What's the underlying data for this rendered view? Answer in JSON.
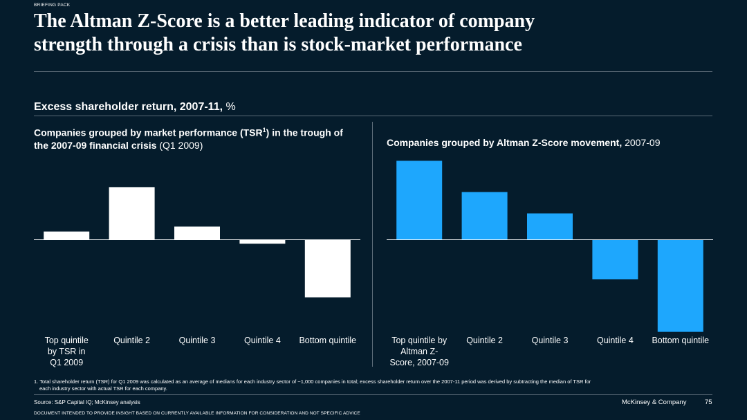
{
  "header": {
    "eyebrow": "BRIEFING PACK",
    "title_line1": "The Altman Z-Score is a better leading indicator of company",
    "title_line2": "strength through a crisis than is stock-market performance"
  },
  "section": {
    "title": "Excess shareholder return, 2007-11,",
    "unit": "%"
  },
  "colors": {
    "background": "#051c2c",
    "left_bars": "#ffffff",
    "right_bars": "#1ea7fd",
    "axis": "#ffffff"
  },
  "chart_data": [
    {
      "type": "bar",
      "title_bold": "Companies grouped by market performance (TSR",
      "title_sup": "1",
      "title_bold2": ") in the trough of the 2007-09 financial crisis",
      "title_normal": " (Q1 2009)",
      "categories": [
        [
          "Top quintile",
          "by TSR in",
          "Q1 2009"
        ],
        [
          "Quintile 2"
        ],
        [
          "Quintile 3"
        ],
        [
          "Quintile 4"
        ],
        [
          "Bottom quintile"
        ]
      ],
      "values": [
        2.5,
        16,
        4,
        -1.2,
        -17.5
      ],
      "ylim": [
        -28.5,
        24.5
      ],
      "color": "#ffffff"
    },
    {
      "type": "bar",
      "title_bold": "Companies grouped by Altman Z-Score movement,",
      "title_normal": " 2007-09",
      "categories": [
        [
          "Top quintile by",
          "Altman Z-",
          "Score, 2007-09"
        ],
        [
          "Quintile 2"
        ],
        [
          "Quintile 3"
        ],
        [
          "Quintile 4"
        ],
        [
          "Bottom quintile"
        ]
      ],
      "values": [
        24,
        14.5,
        8,
        -12,
        -28
      ],
      "ylim": [
        -28.5,
        24.5
      ],
      "color": "#1ea7fd"
    }
  ],
  "footnote": {
    "line1": "1. Total shareholder return (TSR) for Q1 2009 was calculated as an average of medians for each industry sector of ~1,000 companies in total; excess shareholder return over the 2007-11 period was derived by subtracting the median of TSR for",
    "line2": "each industry sector with actual TSR for each company."
  },
  "footer": {
    "source": "Source: S&P Capital IQ; McKinsey analysis",
    "company": "McKinsey & Company",
    "page": "75",
    "disclaimer": "DOCUMENT INTENDED TO PROVIDE INSIGHT BASED ON CURRENTLY AVAILABLE INFORMATION FOR CONSIDERATION AND NOT SPECIFIC ADVICE"
  }
}
